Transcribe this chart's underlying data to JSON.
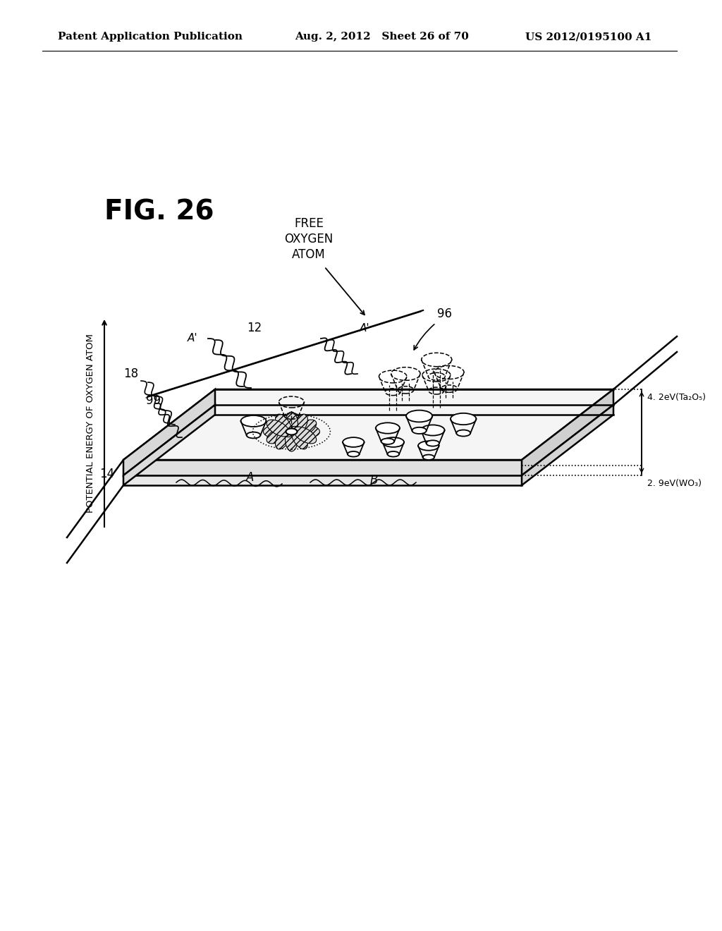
{
  "bg_color": "#ffffff",
  "header_left": "Patent Application Publication",
  "header_mid": "Aug. 2, 2012   Sheet 26 of 70",
  "header_right": "US 2012/0195100 A1",
  "fig_label": "FIG. 26",
  "ylabel": "POTENTIAL ENERGY OF OXYGEN ATOM",
  "label_12": "12",
  "label_14": "14",
  "label_18": "18",
  "label_99": "99",
  "label_96": "96",
  "label_A": "A",
  "label_B": "B",
  "label_Aprime1": "A'",
  "label_Aprime2": "A'",
  "label_free": "FREE\nOXYGEN\nATOM",
  "label_Ta2O5": "4. 2eV(Ta₂O₅)",
  "label_WO3": "2. 9eV(WO₃)",
  "text_color": "#000000",
  "line_color": "#000000"
}
